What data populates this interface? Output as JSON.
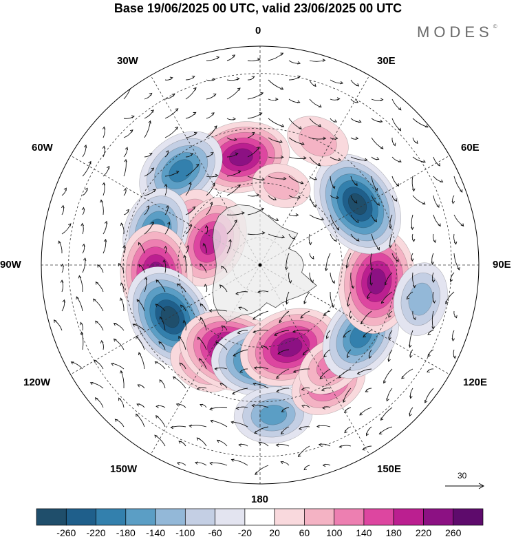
{
  "title": "Base 19/06/2025 00 UTC, valid 23/06/2025 00 UTC",
  "brand": "MODES",
  "brand_mark": "©",
  "longitude_labels": {
    "top": "0",
    "top_right": "30E",
    "right_upper": "60E",
    "right": "90E",
    "right_lower": "120E",
    "bottom_right": "150E",
    "bottom": "180",
    "bottom_left": "150W",
    "left_lower": "120W",
    "left": "90W",
    "left_upper": "60W",
    "top_left": "30W"
  },
  "reference_vector": {
    "label": "30"
  },
  "colorbar": {
    "ticks": [
      "-260",
      "-220",
      "-180",
      "-140",
      "-100",
      "-60",
      "-20",
      "20",
      "60",
      "100",
      "140",
      "180",
      "220",
      "260"
    ],
    "colors": [
      "#1f4e6b",
      "#1f5f8b",
      "#3380ad",
      "#5b9ec5",
      "#93b8d8",
      "#c4cfe4",
      "#e3e4f0",
      "#ffffff",
      "#f9d9dd",
      "#f4b3c4",
      "#ed7fb1",
      "#dd46a0",
      "#bb1f90",
      "#8c1183",
      "#5e0b6c"
    ]
  },
  "anomaly_centers": [
    {
      "lon": 10,
      "lat": -50,
      "value": 220
    },
    {
      "lon": 40,
      "lat": -45,
      "value": -200
    },
    {
      "lon": 60,
      "lat": -60,
      "value": 120
    },
    {
      "lon": 65,
      "lat": -70,
      "value": 200
    },
    {
      "lon": 72,
      "lat": -50,
      "value": -180
    },
    {
      "lon": 95,
      "lat": -52,
      "value": 230
    },
    {
      "lon": 120,
      "lat": -52,
      "value": -260
    },
    {
      "lon": 150,
      "lat": -48,
      "value": 100
    },
    {
      "lon": 162,
      "lat": -57,
      "value": 260
    },
    {
      "lon": 180,
      "lat": -55,
      "value": -220
    },
    {
      "lon": 185,
      "lat": -35,
      "value": -140
    },
    {
      "lon": 200,
      "lat": -58,
      "value": 240
    },
    {
      "lon": 210,
      "lat": -40,
      "value": 140
    },
    {
      "lon": 215,
      "lat": -45,
      "value": 100
    },
    {
      "lon": 235,
      "lat": -45,
      "value": -200
    },
    {
      "lon": 262,
      "lat": -47,
      "value": 250
    },
    {
      "lon": 258,
      "lat": -30,
      "value": -120
    },
    {
      "lon": 302,
      "lat": -48,
      "value": -260
    },
    {
      "lon": 335,
      "lat": -40,
      "value": 80
    },
    {
      "lon": 345,
      "lat": -60,
      "value": 60
    }
  ]
}
